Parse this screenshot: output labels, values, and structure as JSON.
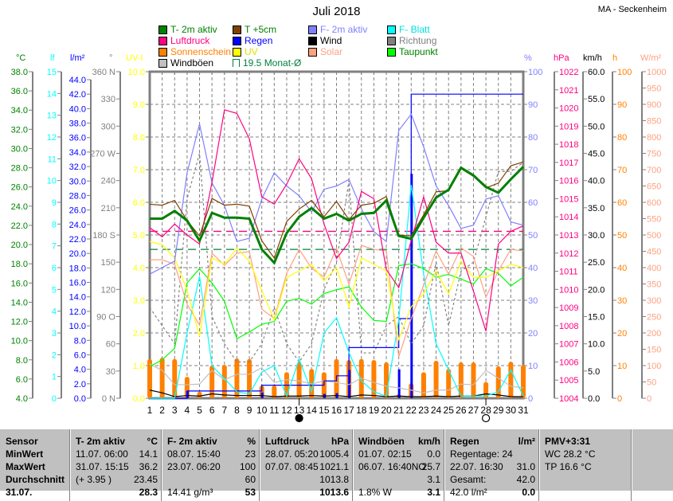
{
  "title": "Juli 2018",
  "station": "MA - Seckenheim",
  "legend": [
    {
      "label": "T- 2m aktiv",
      "color": "#008000",
      "text_color": "#008000"
    },
    {
      "label": "T +5cm",
      "color": "#804000",
      "text_color": "#008000"
    },
    {
      "label": "F- 2m aktiv",
      "color": "#8080ff",
      "text_color": "#8080ff"
    },
    {
      "label": "F- Blatt",
      "color": "#00ffff",
      "text_color": "#00e0e0"
    },
    {
      "label": "Luftdruck",
      "color": "#ff0080",
      "text_color": "#ff0080"
    },
    {
      "label": "Regen",
      "color": "#0000ff",
      "text_color": "#0000ff"
    },
    {
      "label": "Wind",
      "color": "#000000",
      "text_color": "#000000"
    },
    {
      "label": "Richtung",
      "color": "#808080",
      "text_color": "#808080"
    },
    {
      "label": "Sonnenschein",
      "color": "#ff8000",
      "text_color": "#ff8000"
    },
    {
      "label": "UV",
      "color": "#ffff00",
      "text_color": "#e0e000"
    },
    {
      "label": "Solar",
      "color": "#ffa080",
      "text_color": "#ffa080"
    },
    {
      "label": "Taupunkt",
      "color": "#00ff00",
      "text_color": "#008000"
    },
    {
      "label": "Windböen",
      "color": "#c0c0c0",
      "text_color": "#000000"
    },
    {
      "label": "19.5 Monat-Ø",
      "color": "#008040",
      "text_color": "#008040",
      "style": "avg"
    }
  ],
  "chart_data": {
    "type": "line",
    "grid": true,
    "x": [
      1,
      2,
      3,
      4,
      5,
      6,
      7,
      8,
      9,
      10,
      11,
      12,
      13,
      14,
      15,
      16,
      17,
      18,
      19,
      20,
      21,
      22,
      23,
      24,
      25,
      26,
      27,
      28,
      29,
      30,
      31
    ],
    "x_tick_labels": [
      "1",
      "2",
      "3",
      "4",
      "5",
      "6",
      "7",
      "8",
      "9",
      "10",
      "11",
      "12",
      "13",
      "14",
      "15",
      "16",
      "17",
      "18",
      "19",
      "20",
      "21",
      "22",
      "23",
      "24",
      "25",
      "26",
      "27",
      "28",
      "29",
      "30",
      "31"
    ],
    "moon_phases": [
      {
        "day": 13,
        "phase": "new-moon"
      },
      {
        "day": 28,
        "phase": "full-moon"
      }
    ],
    "axes": {
      "temp": {
        "unit": "°C",
        "color": "#008000",
        "range": [
          4,
          38
        ],
        "side": "left",
        "ticks": [
          "38.0",
          "36.0",
          "34.0",
          "32.0",
          "30.0",
          "28.0",
          "26.0",
          "24.0",
          "22.0",
          "20.0",
          "18.0",
          "16.0",
          "14.0",
          "12.0",
          "10.0",
          "8.0",
          "6.0",
          "4.0"
        ]
      },
      "lf": {
        "unit": "lf",
        "color": "#00ffff",
        "range": [
          0,
          15
        ],
        "side": "left",
        "ticks": [
          "15",
          "14",
          "13",
          "12",
          "11",
          "10",
          "9",
          "8",
          "7",
          "6",
          "5",
          "4",
          "3",
          "2",
          "1",
          "0"
        ]
      },
      "rain": {
        "unit": "l/m²",
        "color": "#0000ff",
        "range": [
          0,
          45.1
        ],
        "side": "left",
        "ticks": [
          "44.0",
          "42.0",
          "40.0",
          "38.0",
          "36.0",
          "34.0",
          "32.0",
          "30.0",
          "28.0",
          "26.0",
          "24.0",
          "22.0",
          "20.0",
          "18.0",
          "16.0",
          "14.0",
          "12.0",
          "10.0",
          "8.0",
          "6.0",
          "4.0",
          "2.0",
          "0.0"
        ]
      },
      "dir": {
        "unit": "°",
        "color": "#808080",
        "range": [
          0,
          360
        ],
        "side": "left",
        "ticks": [
          "360 N",
          "330",
          "300",
          "270 W",
          "240",
          "210",
          "180 S",
          "150",
          "120",
          "90  O",
          "60",
          "30",
          "0   N"
        ]
      },
      "uv": {
        "unit": "UV-I",
        "color": "#ffff00",
        "range": [
          0,
          10
        ],
        "side": "left",
        "ticks": [
          "10.0",
          "9.0",
          "8.0",
          "7.0",
          "6.0",
          "5.0",
          "4.0",
          "3.0",
          "2.0",
          "1.0",
          "0.0"
        ]
      },
      "hum": {
        "unit": "%",
        "color": "#8080ff",
        "range": [
          0,
          100
        ],
        "side": "right",
        "ticks": [
          "100",
          "90",
          "80",
          "70",
          "60",
          "50",
          "40",
          "30",
          "20",
          "10",
          "0"
        ]
      },
      "hpa": {
        "unit": "hPa",
        "color": "#ff0080",
        "range": [
          1004,
          1022
        ],
        "side": "right",
        "ticks": [
          "1022",
          "1021",
          "1020",
          "1019",
          "1018",
          "1017",
          "1016",
          "1015",
          "1014",
          "1013",
          "1012",
          "1011",
          "1010",
          "1009",
          "1008",
          "1007",
          "1006",
          "1005",
          "1004"
        ]
      },
      "kmh": {
        "unit": "km/h",
        "color": "#000000",
        "range": [
          0,
          60
        ],
        "side": "right",
        "ticks": [
          "60.0",
          "55.0",
          "50.0",
          "45.0",
          "40.0",
          "35.0",
          "30.0",
          "25.0",
          "20.0",
          "15.0",
          "10.0",
          "5.0",
          "0.0"
        ]
      },
      "h": {
        "unit": "h",
        "color": "#ff8000",
        "range": [
          0,
          100
        ],
        "side": "right",
        "ticks": [
          "100",
          "90",
          "80",
          "70",
          "60",
          "50",
          "40",
          "30",
          "20",
          "10",
          "0"
        ]
      },
      "wm2": {
        "unit": "W/m²",
        "color": "#ffa080",
        "range": [
          0,
          1000
        ],
        "side": "right",
        "ticks": [
          "1000",
          "950",
          "900",
          "850",
          "800",
          "750",
          "700",
          "650",
          "600",
          "550",
          "500",
          "450",
          "400",
          "350",
          "300",
          "250",
          "200",
          "150",
          "100",
          "50",
          "0"
        ]
      }
    },
    "bars": [
      {
        "name": "Sonnenschein",
        "axis": "h",
        "color": "#ff8000",
        "values": [
          12,
          12.4,
          12,
          6.6,
          2,
          10,
          10.2,
          12.2,
          12,
          3.9,
          3.9,
          8,
          11,
          9,
          8,
          12,
          11.7,
          12,
          11.7,
          11,
          1.2,
          4.6,
          8,
          11.5,
          9,
          11,
          11,
          5,
          9.8,
          11.2,
          10.2
        ]
      },
      {
        "name": "Regen",
        "axis": "rain",
        "color": "#0000ff",
        "values": [
          0,
          0,
          0,
          1.0,
          0,
          0,
          0,
          0,
          0,
          0.8,
          0,
          0,
          0,
          0,
          0.6,
          0.7,
          3.9,
          0,
          0,
          0,
          4.0,
          31.0,
          0,
          0,
          0,
          0,
          0,
          0,
          0,
          0,
          0
        ]
      }
    ],
    "series": [
      {
        "name": "Windböen",
        "axis": "kmh",
        "color": "#c0c0c0",
        "values": [
          6.3,
          5.1,
          2.5,
          2.5,
          2.6,
          5.1,
          3.4,
          4.4,
          4.4,
          5.6,
          2.9,
          3.4,
          3.2,
          2.6,
          3.2,
          2.9,
          2.5,
          3.7,
          2.9,
          2.2,
          1.9,
          1.5,
          1.0,
          1.5,
          1.5,
          2.6,
          2.5,
          5.1,
          3.7,
          2.2,
          1.9
        ]
      },
      {
        "name": "Richtung",
        "axis": "dir",
        "color": "#808080",
        "dashed": true,
        "values": [
          100,
          80,
          60,
          220,
          270,
          90,
          60,
          40,
          40,
          60,
          100,
          60,
          40,
          60,
          120,
          150,
          240,
          50,
          50,
          80,
          90,
          60,
          80,
          150,
          80,
          140,
          150,
          200,
          250,
          250,
          260
        ]
      },
      {
        "name": "Wind",
        "axis": "kmh",
        "color": "#000000",
        "values": [
          1.5,
          1.0,
          0.3,
          0.5,
          0.4,
          0.8,
          0.6,
          0.5,
          0.5,
          0.5,
          0.3,
          0.4,
          0.4,
          0.5,
          0.4,
          0.5,
          0.3,
          0.6,
          0.5,
          0.3,
          0.4,
          0.3,
          0.3,
          0.4,
          0.3,
          0.4,
          0.4,
          0.8,
          0.6,
          0.3,
          0.3
        ]
      },
      {
        "name": "Regen",
        "axis": "rain",
        "color": "#0000ff",
        "step": true,
        "values": [
          0,
          0,
          0,
          1.0,
          1.0,
          1.0,
          1.0,
          1.0,
          1.0,
          1.8,
          1.8,
          1.8,
          1.8,
          1.8,
          2.4,
          3.1,
          7.0,
          7.0,
          7.0,
          7.0,
          11.0,
          42.0,
          42.0,
          42.0,
          42.0,
          42.0,
          42.0,
          42.0,
          42.0,
          42.0,
          42.0
        ]
      },
      {
        "name": "F- Blatt",
        "axis": "lf",
        "color": "#00ffff",
        "values": [
          0,
          0,
          0,
          3.0,
          5.6,
          1.5,
          0.9,
          0.3,
          0.2,
          1.2,
          1.5,
          0.1,
          1.8,
          0.3,
          3.0,
          3.7,
          2.1,
          0.8,
          0.3,
          0.1,
          3.6,
          9.8,
          5.7,
          2.5,
          1.3,
          0.1,
          0.1,
          0.1,
          0.3,
          1.3,
          0.1
        ]
      },
      {
        "name": "Taupunkt",
        "axis": "temp",
        "color": "#00ff00",
        "values": [
          7.3,
          8.0,
          9.2,
          16.0,
          17.5,
          16.0,
          14.1,
          10.2,
          10.9,
          11.7,
          12.0,
          14.1,
          14.4,
          13.8,
          14.9,
          15.3,
          15.6,
          13.5,
          12.1,
          12.0,
          17.8,
          18.0,
          17.5,
          16.6,
          16.9,
          16.4,
          15.9,
          17.5,
          17.0,
          15.7,
          16.6
        ]
      },
      {
        "name": "Solar",
        "axis": "wm2",
        "color": "#ffa080",
        "values": [
          424,
          424,
          410,
          288,
          224,
          444,
          407,
          444,
          449,
          273,
          244,
          383,
          456,
          398,
          371,
          459,
          349,
          468,
          456,
          451,
          127,
          244,
          346,
          451,
          380,
          461,
          434,
          310,
          390,
          456,
          451
        ]
      },
      {
        "name": "UV",
        "axis": "uv",
        "color": "#ffff00",
        "values": [
          4.8,
          4.7,
          4.3,
          3.3,
          1.9,
          4.3,
          4.1,
          4.6,
          4.2,
          3.3,
          2.4,
          3.7,
          3.9,
          4.1,
          3.6,
          4.0,
          2.8,
          4.3,
          4.1,
          3.9,
          1.8,
          2.8,
          3.2,
          3.9,
          3.2,
          4.2,
          3.7,
          3.7,
          3.9,
          4.1,
          4.0
        ]
      },
      {
        "name": "F- 2m aktiv",
        "axis": "hum",
        "color": "#8080ff",
        "values": [
          38,
          40,
          42,
          69,
          84,
          66,
          59,
          48,
          49,
          61,
          69,
          65,
          62,
          57,
          64,
          65,
          67,
          58,
          51,
          48,
          82,
          87,
          77,
          65,
          59,
          52,
          53,
          61,
          62,
          54,
          53
        ]
      },
      {
        "name": "Luftdruck",
        "axis": "hpa",
        "color": "#ff0080",
        "values": [
          1013.4,
          1012.9,
          1013.6,
          1013.0,
          1012.5,
          1015.9,
          1019.9,
          1019.7,
          1018.3,
          1015.1,
          1014.7,
          1015.8,
          1017.2,
          1016.1,
          1013.6,
          1011.7,
          1012.6,
          1015.4,
          1015.0,
          1011.1,
          1010.1,
          1012.7,
          1015.1,
          1012.6,
          1012.0,
          1012.0,
          1009.9,
          1007.7,
          1012.5,
          1013.2,
          1013.5
        ]
      },
      {
        "name": "T +5cm",
        "axis": "temp",
        "color": "#804000",
        "values": [
          24.2,
          24.1,
          24.6,
          22.5,
          20.9,
          24.8,
          24.1,
          24.2,
          24.0,
          20.4,
          18.6,
          22.4,
          23.7,
          24.6,
          22.9,
          24.5,
          22.6,
          24.1,
          24.3,
          25.0,
          21.0,
          20.9,
          23.1,
          25.5,
          25.6,
          27.9,
          27.1,
          25.9,
          26.4,
          28.2,
          28.6
        ]
      },
      {
        "name": "T- 2m aktiv",
        "axis": "temp",
        "color": "#008000",
        "thick": true,
        "values": [
          22.7,
          22.7,
          23.5,
          22.5,
          20.4,
          23.3,
          22.8,
          22.8,
          22.7,
          19.5,
          18.1,
          21.2,
          22.9,
          23.8,
          22.7,
          23.2,
          22.5,
          23.2,
          23.3,
          24.6,
          20.9,
          20.6,
          22.8,
          24.9,
          25.7,
          28.0,
          27.2,
          26.0,
          25.4,
          26.8,
          28.1
        ]
      }
    ],
    "reference_lines": [
      {
        "name": "Luftdruck-Ø",
        "axis": "hpa",
        "value": 1013.2,
        "color": "#ff0080"
      },
      {
        "name": "Monat-Ø",
        "axis": "temp",
        "value": 19.5,
        "color": "#008040"
      }
    ]
  },
  "table": {
    "columns": [
      {
        "header": "Sensor",
        "unit": "",
        "rows": [
          "MinWert",
          "MaxWert",
          "Durchschnitt",
          "31.07."
        ]
      },
      {
        "header": "T- 2m aktiv",
        "unit": "°C",
        "rows": [
          [
            "11.07.  06:00",
            "14.1"
          ],
          [
            "31.07.  15:15",
            "36.2"
          ],
          [
            "(+ 3.95 )",
            "23.45"
          ],
          [
            "",
            "28.3"
          ]
        ]
      },
      {
        "header": "F- 2m aktiv",
        "unit": "%",
        "rows": [
          [
            "08.07.  15:40",
            "23"
          ],
          [
            "23.07.  06:20",
            "100"
          ],
          [
            "",
            "60"
          ],
          [
            "14.41 g/m³",
            "53"
          ]
        ]
      },
      {
        "header": "Luftdruck",
        "unit": "hPa",
        "rows": [
          [
            "28.07.  05:20",
            "1005.4"
          ],
          [
            "07.07.  08:45",
            "1021.1"
          ],
          [
            "",
            "1013.8"
          ],
          [
            "",
            "1013.6"
          ]
        ]
      },
      {
        "header": "Windböen",
        "unit": "km/h",
        "rows": [
          [
            "01.07.  02:15",
            "0.0"
          ],
          [
            "06.07.  16:40NO",
            "25.7"
          ],
          [
            "",
            "3.1"
          ],
          [
            "1.8% W",
            "3.1"
          ]
        ]
      },
      {
        "header": "Regen",
        "unit": "l/m²",
        "rows": [
          [
            "Regentage: 24",
            ""
          ],
          [
            "22.07.  16:30",
            "31.0"
          ],
          [
            "Gesamt:",
            "42.0"
          ],
          [
            "42.0 l/m²",
            "0.0"
          ]
        ]
      },
      {
        "header": "PMV+3:31",
        "unit": "",
        "rows": [
          "WC 28.2 °C",
          "TP 16.6 °C",
          "",
          ""
        ]
      }
    ]
  }
}
